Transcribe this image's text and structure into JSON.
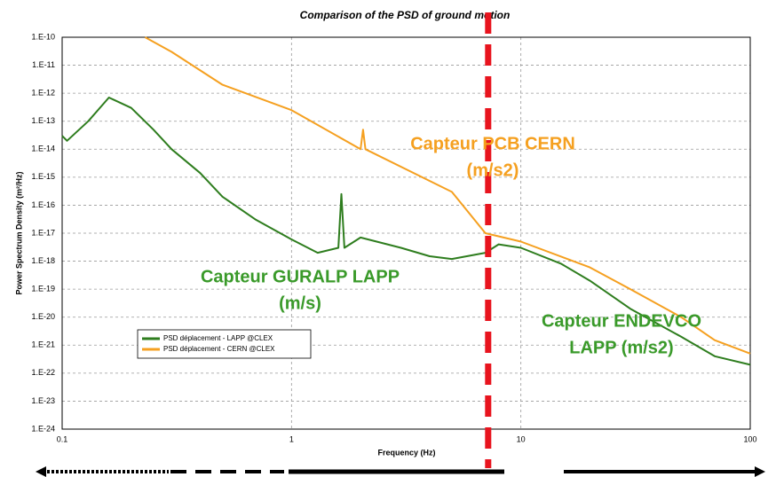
{
  "chart_data": {
    "type": "line",
    "title": "Comparison of the PSD of ground motion",
    "x_label": "Frequency (Hz)",
    "y_label": "Power Spectrum Density (m²/Hz)",
    "xscale": "log",
    "yscale": "log",
    "xlim": [
      0.1,
      100
    ],
    "ylim": [
      1e-24,
      1e-10
    ],
    "xticks": [
      0.1,
      1,
      10,
      100
    ],
    "yticks": [
      {
        "value": 1e-10,
        "label": "1.E-10"
      },
      {
        "value": 1e-11,
        "label": "1.E-11"
      },
      {
        "value": 1e-12,
        "label": "1.E-12"
      },
      {
        "value": 1e-13,
        "label": "1.E-13"
      },
      {
        "value": 1e-14,
        "label": "1.E-14"
      },
      {
        "value": 1e-15,
        "label": "1.E-15"
      },
      {
        "value": 1e-16,
        "label": "1.E-16"
      },
      {
        "value": 1e-17,
        "label": "1.E-17"
      },
      {
        "value": 1e-18,
        "label": "1.E-18"
      },
      {
        "value": 1e-19,
        "label": "1.E-19"
      },
      {
        "value": 1e-20,
        "label": "1.E-20"
      },
      {
        "value": 1e-21,
        "label": "1.E-21"
      },
      {
        "value": 1e-22,
        "label": "1.E-22"
      },
      {
        "value": 1e-23,
        "label": "1.E-23"
      },
      {
        "value": 1e-24,
        "label": "1.E-24"
      }
    ],
    "grid": true,
    "legend": "lower left",
    "series": [
      {
        "name": "PSD déplacement - LAPP @CLEX",
        "color": "#2e7d1e",
        "x": [
          0.1,
          0.105,
          0.13,
          0.16,
          0.2,
          0.25,
          0.3,
          0.4,
          0.5,
          0.7,
          1,
          1.3,
          1.6,
          1.65,
          1.7,
          2,
          3,
          4,
          5,
          7,
          8,
          10,
          15,
          20,
          30,
          50,
          70,
          100
        ],
        "values": [
          3e-14,
          2e-14,
          1e-13,
          7e-13,
          3e-13,
          5e-14,
          1e-14,
          1.4e-15,
          2e-16,
          3e-17,
          6e-18,
          2e-18,
          3e-18,
          2.5e-16,
          3e-18,
          7e-18,
          3e-18,
          1.5e-18,
          1.2e-18,
          2e-18,
          4e-18,
          3e-18,
          8e-19,
          2e-19,
          2e-20,
          2e-21,
          4e-22,
          2e-22
        ]
      },
      {
        "name": "PSD déplacement - CERN @CLEX",
        "color": "#f5a020",
        "x": [
          0.23,
          0.3,
          0.5,
          1,
          2,
          2.05,
          2.1,
          5,
          7,
          10,
          20,
          30,
          50,
          70,
          100
        ],
        "values": [
          1e-10,
          3e-11,
          2e-12,
          2.5e-13,
          1e-14,
          5e-14,
          1e-14,
          3e-16,
          1e-17,
          5e-18,
          6e-19,
          1e-19,
          1e-20,
          1.5e-21,
          5e-22
        ]
      }
    ],
    "reference_line": {
      "x": 7.2,
      "color": "#e8141e"
    },
    "annotations": [
      {
        "lines": [
          "Capteur PCB CERN",
          "(m/s2)"
        ],
        "color": "#f5a020"
      },
      {
        "lines": [
          "Capteur GURALP LAPP",
          "(m/s)"
        ],
        "color": "#3a9a2a"
      },
      {
        "lines": [
          "Capteur ENDEVCO",
          "LAPP (m/s2)"
        ],
        "color": "#3a9a2a"
      }
    ]
  }
}
